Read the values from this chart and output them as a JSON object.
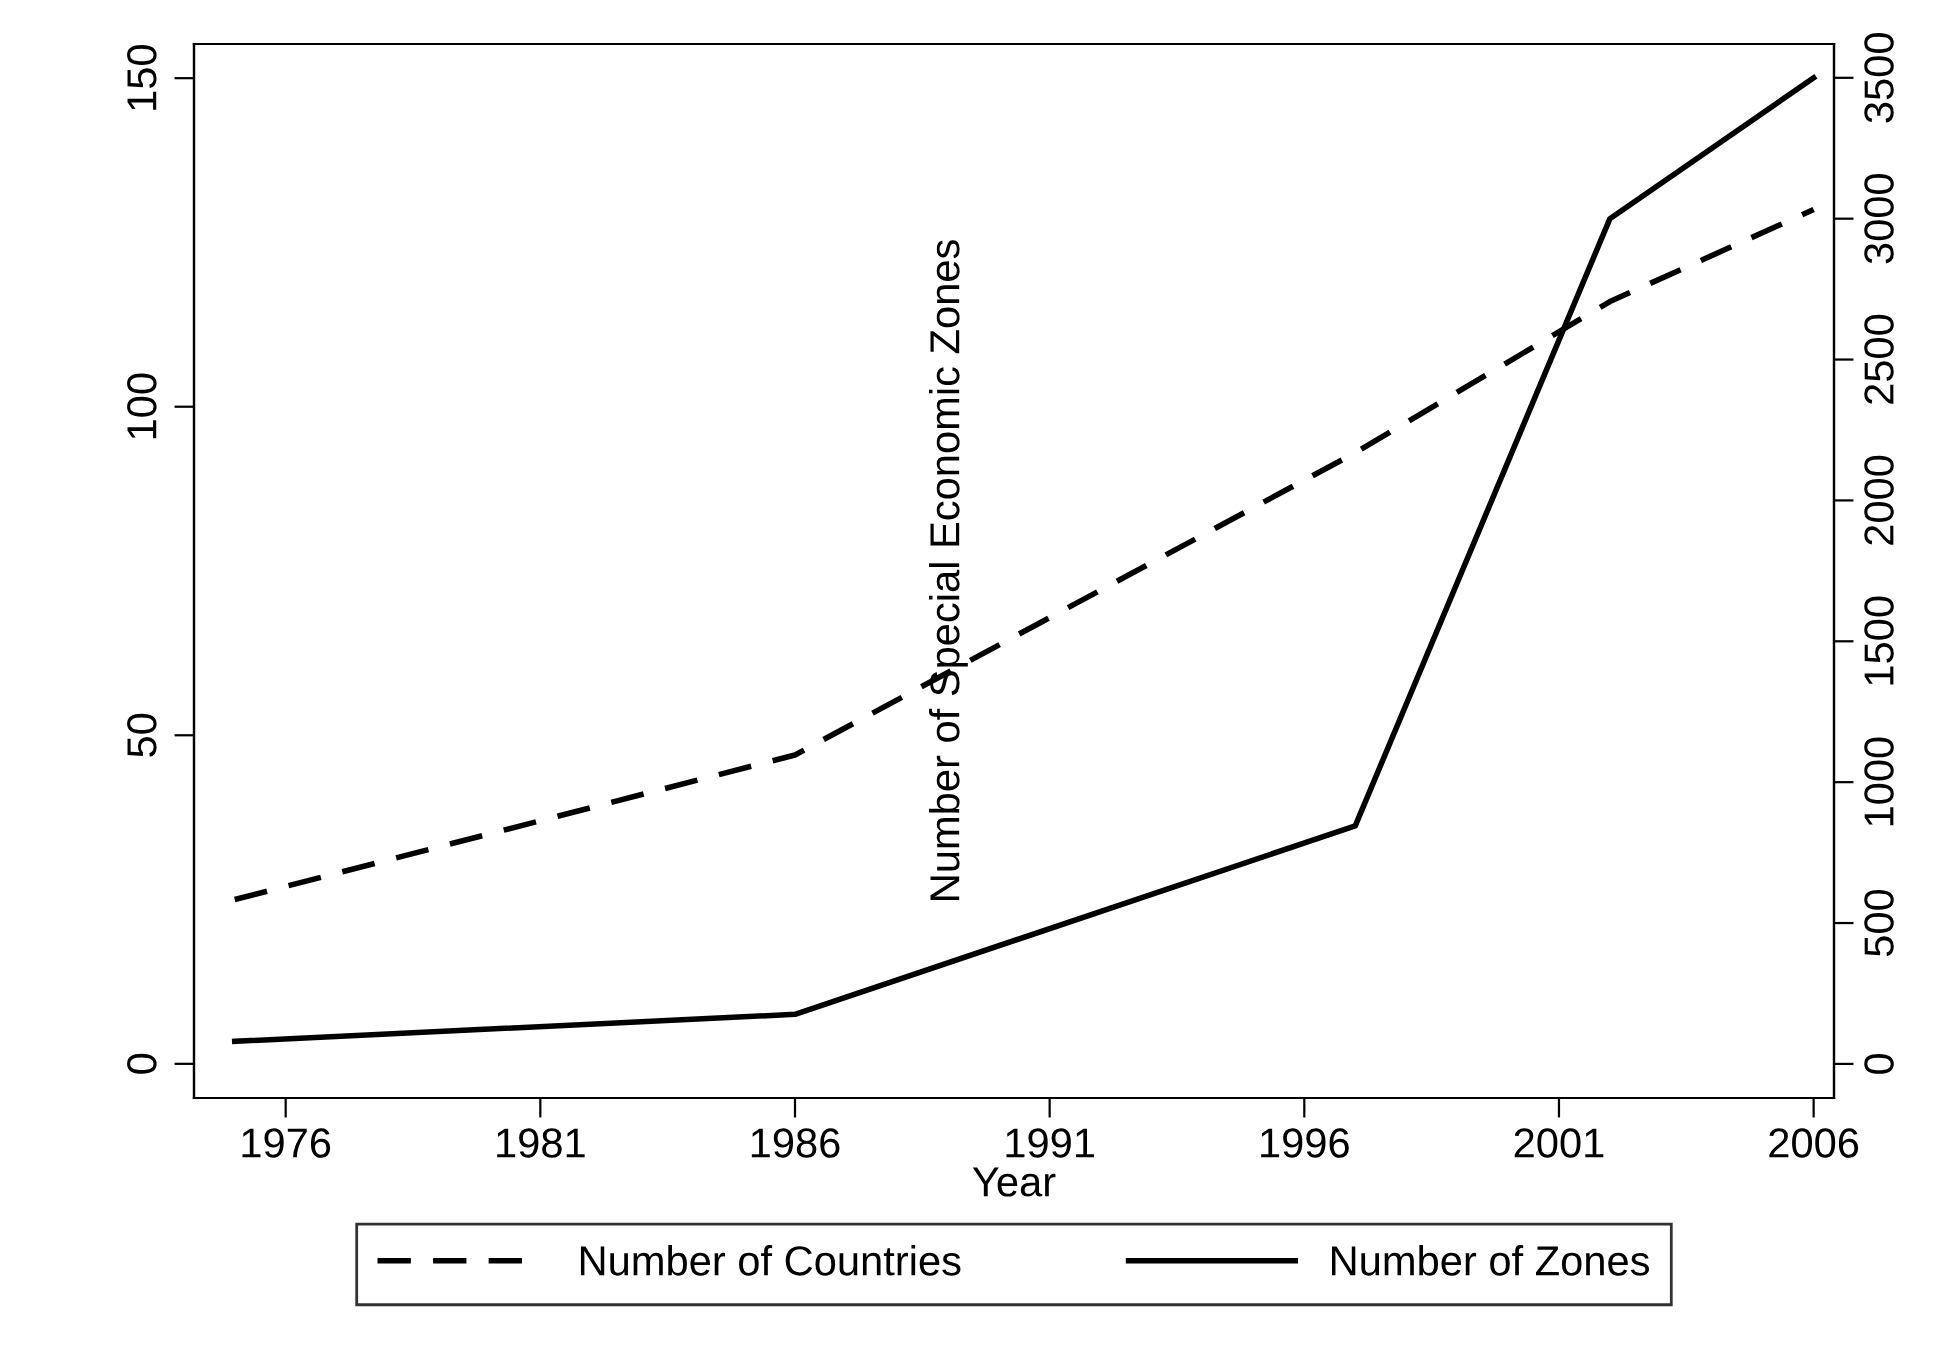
{
  "chart_data": {
    "type": "line",
    "xlabel": "Year",
    "annotations": [
      "Number of Special Economic Zones"
    ],
    "x": [
      1975,
      1986,
      1997,
      2002,
      2006
    ],
    "series": [
      {
        "name": "Number of Countries",
        "color": "#000000",
        "line_style": "dashed",
        "values": [
          25,
          47,
          93,
          116,
          130
        ]
      },
      {
        "name": "Number of Zones",
        "color": "#000000",
        "line_style": "solid",
        "axis": "y2",
        "values": [
          80,
          176,
          845,
          3000,
          3500
        ]
      }
    ],
    "xlim": [
      1974.2,
      2006.4
    ],
    "xticks": [
      1976,
      1981,
      1986,
      1991,
      1996,
      2001,
      2006
    ],
    "ylim": [
      -5.2,
      155.2
    ],
    "yticks": [
      0,
      50,
      100,
      150
    ],
    "y2lim": [
      -121,
      3620
    ],
    "y2ticks": [
      0,
      500,
      1000,
      1500,
      2000,
      2500,
      3000,
      3500
    ],
    "grid": false,
    "legend": "bottom",
    "marker": "none"
  }
}
